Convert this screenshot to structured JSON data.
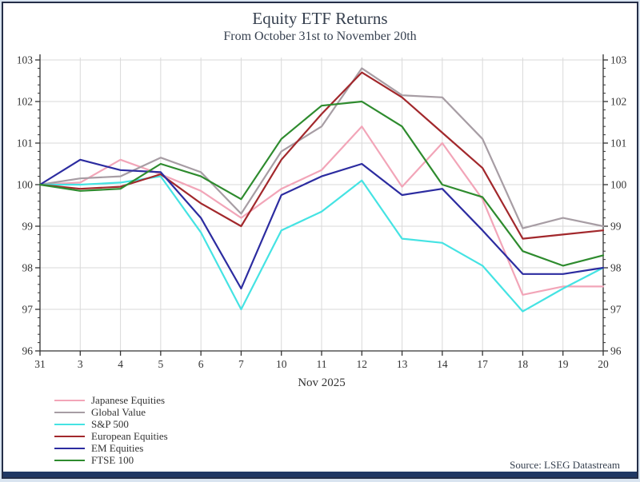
{
  "chart_data": {
    "type": "line",
    "title": "Equity ETF Returns",
    "subtitle": "From October 31st to November 20th",
    "xlabel": "Nov 2025",
    "source_note": "Source: LSEG Datastream",
    "x_tick_labels": [
      "31",
      "3",
      "4",
      "5",
      "6",
      "7",
      "10",
      "11",
      "12",
      "13",
      "14",
      "17",
      "18",
      "19",
      "20"
    ],
    "y_ticks": [
      96,
      97,
      98,
      99,
      100,
      101,
      102,
      103
    ],
    "ylim": [
      96,
      103
    ],
    "grid": true,
    "legend_position": "bottom-left-outside",
    "series": [
      {
        "name": "Japanese Equities",
        "color": "#f2a5b8",
        "values": [
          100,
          100.05,
          100.6,
          100.25,
          99.85,
          99.2,
          99.9,
          100.35,
          101.4,
          99.95,
          101.0,
          99.65,
          97.35,
          97.55,
          97.55
        ]
      },
      {
        "name": "Global Value",
        "color": "#a79da4",
        "values": [
          100,
          100.15,
          100.2,
          100.65,
          100.3,
          99.3,
          100.8,
          101.4,
          102.8,
          102.15,
          102.1,
          101.1,
          98.95,
          99.2,
          99.0
        ]
      },
      {
        "name": "S&P 500",
        "color": "#45e3e3",
        "values": [
          100,
          100.0,
          100.05,
          100.2,
          98.85,
          97.0,
          98.9,
          99.35,
          100.1,
          98.7,
          98.6,
          98.05,
          96.95,
          97.5,
          98.0
        ]
      },
      {
        "name": "European Equities",
        "color": "#a2282c",
        "values": [
          100,
          99.9,
          99.95,
          100.25,
          99.55,
          99.0,
          100.6,
          101.7,
          102.7,
          102.1,
          101.25,
          100.4,
          98.7,
          98.8,
          98.9
        ]
      },
      {
        "name": "EM Equities",
        "color": "#2c2ca0",
        "values": [
          100,
          100.6,
          100.35,
          100.3,
          99.2,
          97.5,
          99.75,
          100.2,
          100.5,
          99.75,
          99.9,
          98.9,
          97.85,
          97.85,
          98.0
        ]
      },
      {
        "name": "FTSE 100",
        "color": "#2e8b2e",
        "values": [
          100,
          99.85,
          99.9,
          100.5,
          100.2,
          99.65,
          101.1,
          101.9,
          102.0,
          101.4,
          100.0,
          99.7,
          98.4,
          98.05,
          98.3
        ]
      }
    ]
  },
  "frame": {
    "border_color": "#242e48",
    "bottom_bar_color": "#203864",
    "grid_color": "#d9d9d9",
    "axis_color": "#333333",
    "tick_label_color": "#333333"
  }
}
